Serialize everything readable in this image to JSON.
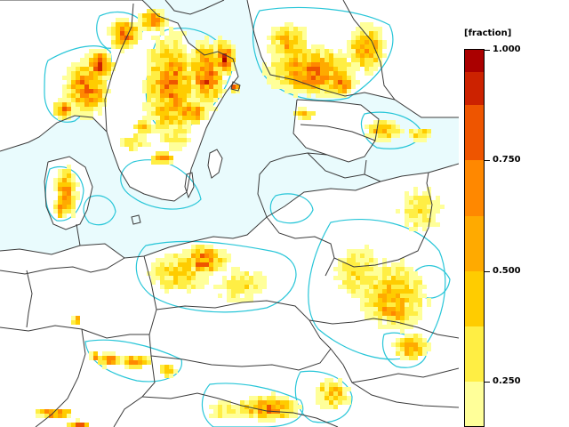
{
  "colors": {
    "sea": "#e9fbfd",
    "land_empty": "#ffffff",
    "border": "#3b3b3b",
    "fraction_contour": "#28c6d8",
    "frame": "#000000"
  },
  "legend": {
    "title": "[fraction]",
    "tick_labels": [
      "1.000",
      "0.750",
      "0.500",
      "0.250"
    ],
    "tick_values": [
      1.0,
      0.75,
      0.5,
      0.25
    ],
    "min_visible": 0.15,
    "max": 1.0,
    "color_bins": [
      {
        "from": 0.15,
        "to": 0.25,
        "color": "#ffff99"
      },
      {
        "from": 0.25,
        "to": 0.375,
        "color": "#ffee44"
      },
      {
        "from": 0.375,
        "to": 0.5,
        "color": "#ffcc00"
      },
      {
        "from": 0.5,
        "to": 0.625,
        "color": "#ffaa00"
      },
      {
        "from": 0.625,
        "to": 0.75,
        "color": "#ff8800"
      },
      {
        "from": 0.75,
        "to": 0.875,
        "color": "#ee5500"
      },
      {
        "from": 0.875,
        "to": 0.95,
        "color": "#cc2200"
      },
      {
        "from": 0.95,
        "to": 1.0,
        "color": "#aa0000"
      }
    ]
  }
}
